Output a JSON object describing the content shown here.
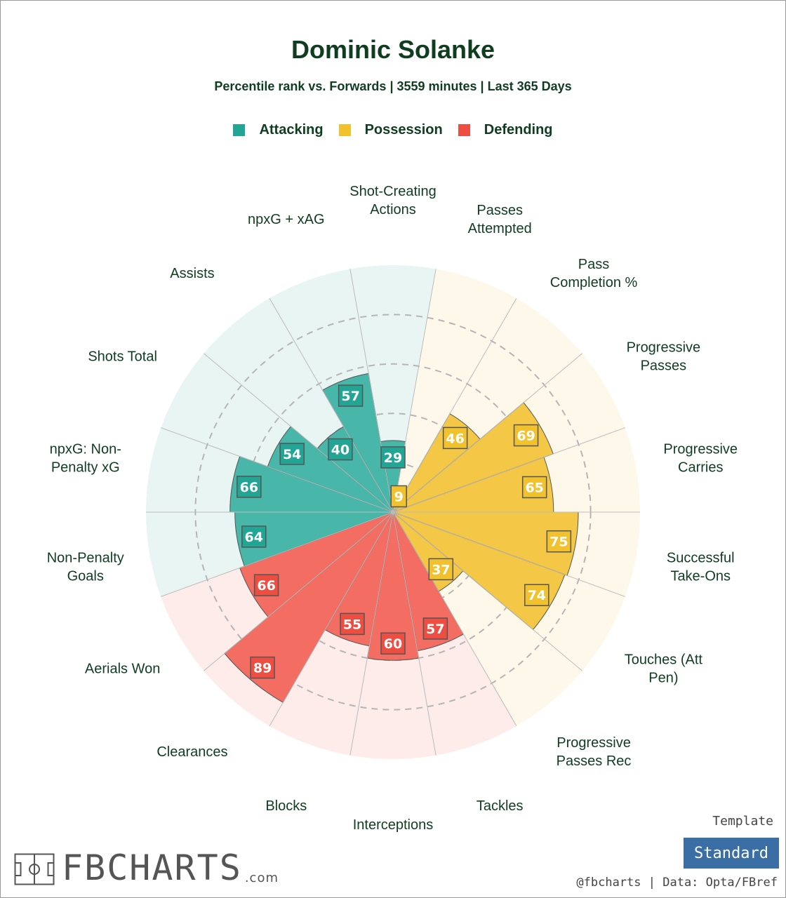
{
  "title": "Dominic Solanke",
  "subtitle": "Percentile rank vs. Forwards | 3559 minutes | Last 365 Days",
  "legend": [
    {
      "label": "Attacking",
      "color": "#23a595"
    },
    {
      "label": "Possession",
      "color": "#f2c12e"
    },
    {
      "label": "Defending",
      "color": "#ee4e42"
    }
  ],
  "chart_data": {
    "type": "polar-bar",
    "title": "Dominic Solanke",
    "subtitle": "Percentile rank vs. Forwards | 3559 minutes | Last 365 Days",
    "rlim": [
      0,
      100
    ],
    "grid": true,
    "start": "top, clockwise",
    "groups": {
      "Attacking": {
        "color": "#23a595",
        "bar_color": "#48b7aa",
        "bg_color": "#e8f5f3"
      },
      "Possession": {
        "color": "#f2c12e",
        "bar_color": "#f4c746",
        "bg_color": "#fdf8e9"
      },
      "Defending": {
        "color": "#ee4e42",
        "bar_color": "#f46d62",
        "bg_color": "#fdecea"
      }
    },
    "stats": [
      {
        "label": "Shot-Creating\nActions",
        "value": 29,
        "group": "Attacking"
      },
      {
        "label": "Passes\nAttempted",
        "value": 9,
        "group": "Possession"
      },
      {
        "label": "Pass\nCompletion %",
        "value": 46,
        "group": "Possession"
      },
      {
        "label": "Progressive\nPasses",
        "value": 69,
        "group": "Possession"
      },
      {
        "label": "Progressive\nCarries",
        "value": 65,
        "group": "Possession"
      },
      {
        "label": "Successful\nTake-Ons",
        "value": 75,
        "group": "Possession"
      },
      {
        "label": "Touches (Att\nPen)",
        "value": 74,
        "group": "Possession"
      },
      {
        "label": "Progressive\nPasses Rec",
        "value": 37,
        "group": "Possession"
      },
      {
        "label": "Tackles",
        "value": 57,
        "group": "Defending"
      },
      {
        "label": "Interceptions",
        "value": 60,
        "group": "Defending"
      },
      {
        "label": "Blocks",
        "value": 55,
        "group": "Defending"
      },
      {
        "label": "Clearances",
        "value": 89,
        "group": "Defending"
      },
      {
        "label": "Aerials Won",
        "value": 66,
        "group": "Defending"
      },
      {
        "label": "Non-Penalty\nGoals",
        "value": 64,
        "group": "Attacking"
      },
      {
        "label": "npxG: Non-\nPenalty xG",
        "value": 66,
        "group": "Attacking"
      },
      {
        "label": "Shots Total",
        "value": 54,
        "group": "Attacking"
      },
      {
        "label": "Assists",
        "value": 40,
        "group": "Attacking"
      },
      {
        "label": "npxG + xAG",
        "value": 57,
        "group": "Attacking"
      }
    ]
  },
  "footer": {
    "template_label": "Template",
    "template_button": "Standard",
    "credit": "@fbcharts | Data: Opta/FBref",
    "logo_text": "FBCHARTS",
    "logo_suffix": ".com",
    "logo_icon": "pitch-icon"
  }
}
